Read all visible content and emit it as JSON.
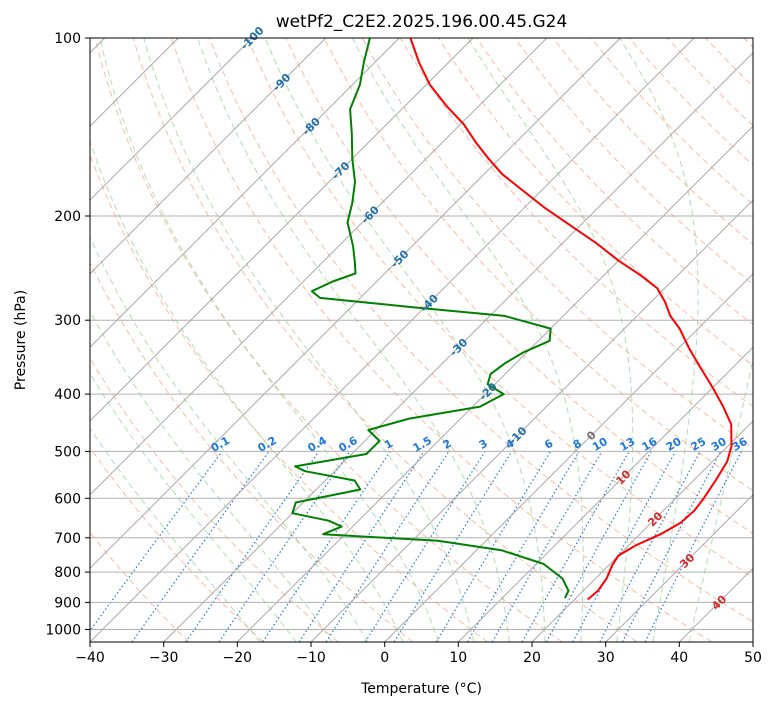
{
  "chart_data": {
    "type": "line",
    "title": "wetPf2_C2E2.2025.196.00.45.G24",
    "xlabel": "Temperature (°C)",
    "ylabel": "Pressure (hPa)",
    "xlim": [
      -40,
      50
    ],
    "ylim_pressure": [
      1050,
      100
    ],
    "y_scale": "log",
    "x_ticks": [
      -40,
      -30,
      -20,
      -10,
      0,
      10,
      20,
      30,
      40,
      50
    ],
    "y_ticks": [
      1000,
      900,
      800,
      700,
      600,
      500,
      400,
      300,
      200,
      100
    ],
    "grid": true,
    "skew": "temperature axis skewed 45 degrees",
    "series": [
      {
        "key": "temperature",
        "color": "#ff0000",
        "points": [
          [
            21.8,
            890
          ],
          [
            22.0,
            860
          ],
          [
            21.5,
            820
          ],
          [
            20.5,
            780
          ],
          [
            20.0,
            750
          ],
          [
            21.0,
            720
          ],
          [
            22.8,
            690
          ],
          [
            24.0,
            660
          ],
          [
            24.2,
            630
          ],
          [
            23.8,
            600
          ],
          [
            23.0,
            560
          ],
          [
            22.0,
            520
          ],
          [
            20.5,
            490
          ],
          [
            17.5,
            450
          ],
          [
            14.0,
            420
          ],
          [
            10.0,
            390
          ],
          [
            5.5,
            360
          ],
          [
            1.5,
            335
          ],
          [
            -2.5,
            310
          ],
          [
            -5.5,
            295
          ],
          [
            -8.0,
            280
          ],
          [
            -11.0,
            265
          ],
          [
            -15.0,
            252
          ],
          [
            -20.0,
            238
          ],
          [
            -25.5,
            222
          ],
          [
            -31.5,
            207
          ],
          [
            -37.5,
            193
          ],
          [
            -43.0,
            180
          ],
          [
            -47.5,
            170
          ],
          [
            -51.5,
            160
          ],
          [
            -55.5,
            150
          ],
          [
            -59.5,
            140
          ],
          [
            -64.5,
            130
          ],
          [
            -69.5,
            120
          ],
          [
            -74.0,
            110
          ],
          [
            -78.5,
            100
          ]
        ]
      },
      {
        "key": "dewpoint",
        "color": "#008000",
        "points": [
          [
            18.5,
            885
          ],
          [
            18.0,
            860
          ],
          [
            15.5,
            820
          ],
          [
            11.0,
            775
          ],
          [
            3.5,
            735
          ],
          [
            -6.5,
            708
          ],
          [
            -23.0,
            690
          ],
          [
            -21.5,
            670
          ],
          [
            -24.0,
            655
          ],
          [
            -30.0,
            636
          ],
          [
            -31.0,
            610
          ],
          [
            -24.0,
            580
          ],
          [
            -26.0,
            560
          ],
          [
            -34.0,
            540
          ],
          [
            -36.0,
            530
          ],
          [
            -28.0,
            505
          ],
          [
            -28.0,
            480
          ],
          [
            -31.0,
            460
          ],
          [
            -27.0,
            440
          ],
          [
            -19.0,
            420
          ],
          [
            -17.5,
            400
          ],
          [
            -21.0,
            385
          ],
          [
            -22.0,
            370
          ],
          [
            -21.5,
            355
          ],
          [
            -20.5,
            340
          ],
          [
            -18.5,
            325
          ],
          [
            -20.0,
            310
          ],
          [
            -28.0,
            295
          ],
          [
            -42.0,
            285
          ],
          [
            -55.5,
            275
          ],
          [
            -57.5,
            268
          ],
          [
            -56.0,
            258
          ],
          [
            -54.0,
            250
          ],
          [
            -55.5,
            240
          ],
          [
            -58.0,
            225
          ],
          [
            -62.0,
            205
          ],
          [
            -64.0,
            190
          ],
          [
            -66.5,
            175
          ],
          [
            -70.0,
            160
          ],
          [
            -73.5,
            145
          ],
          [
            -77.0,
            132
          ],
          [
            -79.0,
            120
          ],
          [
            -81.5,
            110
          ],
          [
            -84.0,
            100
          ]
        ]
      }
    ],
    "isotherm_labels": [
      "-100",
      "-90",
      "-80",
      "-70",
      "-60",
      "-50",
      "-40",
      "-30",
      "-20",
      "-10",
      "0",
      "10",
      "20",
      "30",
      "40"
    ],
    "mixing_ratio_labels": [
      "0.1",
      "0.2",
      "0.4",
      "0.6",
      "1",
      "1.5",
      "2",
      "3",
      "4",
      "6",
      "8",
      "10",
      "13",
      "16",
      "20",
      "25",
      "30",
      "36"
    ],
    "colors": {
      "temperature": "#ff0000",
      "dewpoint": "#008000",
      "isobar_grid": "#b0b0b0",
      "isotherm": "#a0a0a0",
      "dry_adiabat": "#f4a07c",
      "moist_adiabat": "#8fcf8f",
      "mixing_ratio": "#1f77e0",
      "isotherm_label_cold": "#1f6fb0",
      "isotherm_label_warm": "#d62728"
    }
  }
}
